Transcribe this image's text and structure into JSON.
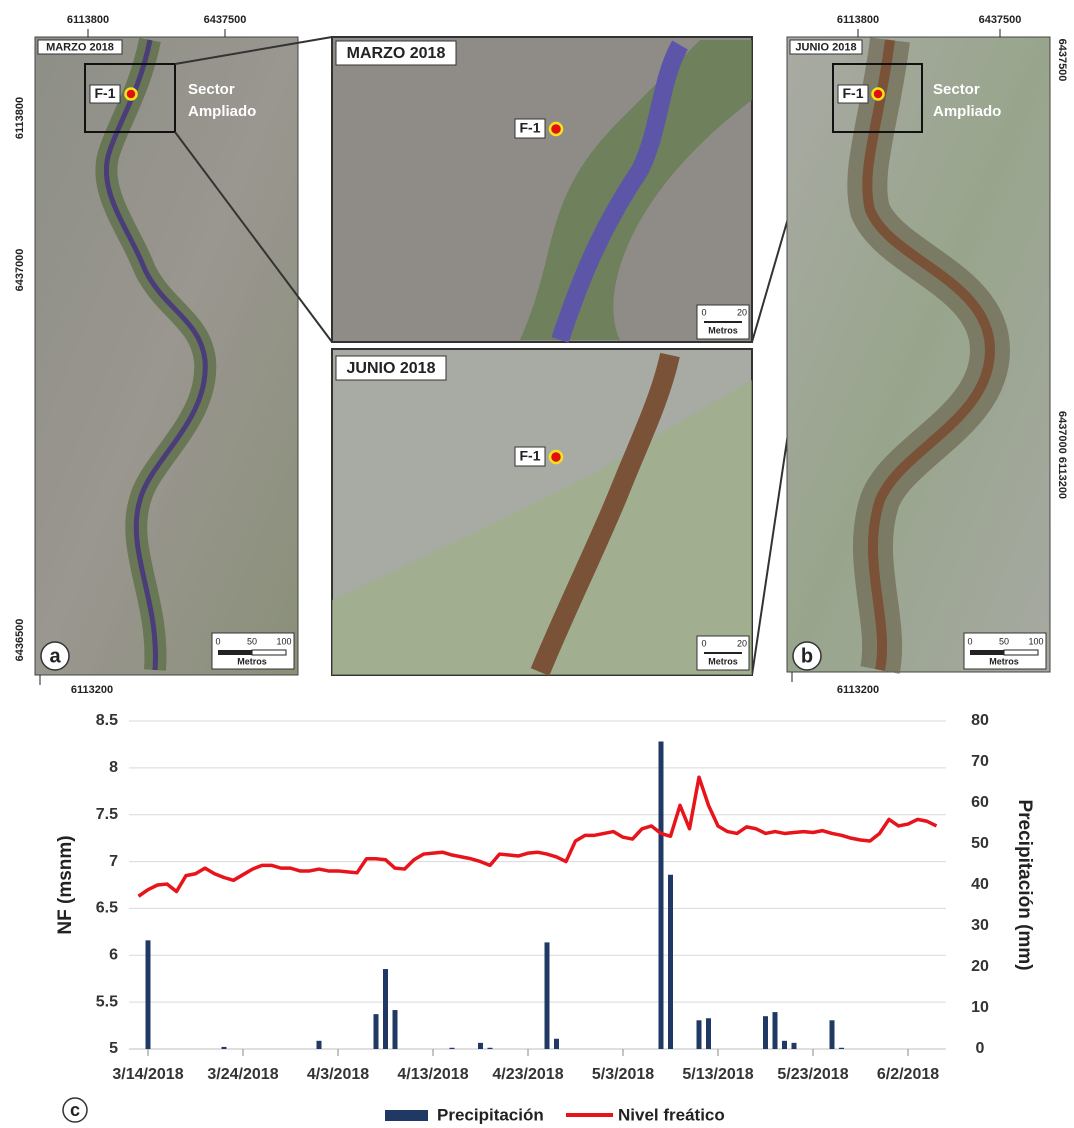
{
  "panel_a": {
    "label": "a",
    "date": "MARZO 2018",
    "top_coords": [
      "6113800",
      "6437500"
    ],
    "left_coords": [
      "6113800",
      "6437000",
      "6436500"
    ],
    "bottom_coord": "6113200",
    "point": "F-1",
    "sector": [
      "Sector",
      "Ampliado"
    ],
    "scale": [
      "0",
      "50",
      "100"
    ],
    "scale_unit": "Metros"
  },
  "panel_b": {
    "label": "b",
    "date": "JUNIO 2018",
    "top_coords": [
      "6113800",
      "6437500"
    ],
    "right_coords": [
      "6437500",
      "6437000 6113200"
    ],
    "bottom_coord": "6113200",
    "point": "F-1",
    "sector": [
      "Sector",
      "Ampliado"
    ],
    "scale": [
      "0",
      "50",
      "100"
    ],
    "scale_unit": "Metros"
  },
  "inset_march": {
    "date": "MARZO 2018",
    "point": "F-1",
    "scale": [
      "0",
      "20"
    ],
    "scale_unit": "Metros"
  },
  "inset_june": {
    "date": "JUNIO 2018",
    "point": "F-1",
    "scale": [
      "0",
      "20"
    ],
    "scale_unit": "Metros"
  },
  "chart_data": {
    "type": "combo",
    "panel_label": "c",
    "y_label": "NF (msnm)",
    "y2_label": "Precipitación (mm)",
    "xlim": [
      "3/12/2018",
      "6/6/2018"
    ],
    "xticks": [
      "3/14/2018",
      "3/24/2018",
      "4/3/2018",
      "4/13/2018",
      "4/23/2018",
      "5/3/2018",
      "5/13/2018",
      "5/23/2018",
      "6/2/2018"
    ],
    "ylim": [
      5,
      8.5
    ],
    "yticks": [
      5,
      5.5,
      6,
      6.5,
      7,
      7.5,
      8,
      8.5
    ],
    "y2lim": [
      0,
      80
    ],
    "y2ticks": [
      0,
      10,
      20,
      30,
      40,
      50,
      60,
      70,
      80
    ],
    "grid": true,
    "legend": "bottom",
    "series": [
      {
        "name": "Precipitación",
        "type": "bar",
        "axis": "y2",
        "color": "#1f3864",
        "x": [
          "3/14/2018",
          "3/22/2018",
          "4/1/2018",
          "4/7/2018",
          "4/8/2018",
          "4/9/2018",
          "4/15/2018",
          "4/18/2018",
          "4/19/2018",
          "4/25/2018",
          "4/26/2018",
          "5/7/2018",
          "5/8/2018",
          "5/11/2018",
          "5/12/2018",
          "5/18/2018",
          "5/19/2018",
          "5/20/2018",
          "5/21/2018",
          "5/25/2018",
          "5/26/2018"
        ],
        "values": [
          26.5,
          0.5,
          2,
          8.5,
          19.5,
          9.5,
          0.3,
          1.5,
          0.3,
          26,
          2.5,
          75,
          42.5,
          7,
          7.5,
          8,
          9,
          2,
          1.5,
          7,
          0.3
        ]
      },
      {
        "name": "Nivel freático",
        "type": "line",
        "axis": "y",
        "color": "#e8141b",
        "x": [
          "3/13/2018",
          "3/14/2018",
          "3/15/2018",
          "3/16/2018",
          "3/17/2018",
          "3/18/2018",
          "3/19/2018",
          "3/20/2018",
          "3/21/2018",
          "3/22/2018",
          "3/23/2018",
          "3/24/2018",
          "3/25/2018",
          "3/26/2018",
          "3/27/2018",
          "3/28/2018",
          "3/29/2018",
          "3/30/2018",
          "3/31/2018",
          "4/1/2018",
          "4/2/2018",
          "4/3/2018",
          "4/4/2018",
          "4/5/2018",
          "4/6/2018",
          "4/7/2018",
          "4/8/2018",
          "4/9/2018",
          "4/10/2018",
          "4/11/2018",
          "4/12/2018",
          "4/13/2018",
          "4/14/2018",
          "4/15/2018",
          "4/16/2018",
          "4/17/2018",
          "4/18/2018",
          "4/19/2018",
          "4/20/2018",
          "4/21/2018",
          "4/22/2018",
          "4/23/2018",
          "4/24/2018",
          "4/25/2018",
          "4/26/2018",
          "4/27/2018",
          "4/28/2018",
          "4/29/2018",
          "4/30/2018",
          "5/1/2018",
          "5/2/2018",
          "5/3/2018",
          "5/4/2018",
          "5/5/2018",
          "5/6/2018",
          "5/7/2018",
          "5/8/2018",
          "5/9/2018",
          "5/10/2018",
          "5/11/2018",
          "5/12/2018",
          "5/13/2018",
          "5/14/2018",
          "5/15/2018",
          "5/16/2018",
          "5/17/2018",
          "5/18/2018",
          "5/19/2018",
          "5/20/2018",
          "5/21/2018",
          "5/22/2018",
          "5/23/2018",
          "5/24/2018",
          "5/25/2018",
          "5/26/2018",
          "5/27/2018",
          "5/28/2018",
          "5/29/2018",
          "5/30/2018",
          "5/31/2018",
          "6/1/2018",
          "6/2/2018",
          "6/3/2018",
          "6/4/2018",
          "6/5/2018"
        ],
        "values": [
          6.63,
          6.7,
          6.75,
          6.76,
          6.68,
          6.85,
          6.87,
          6.93,
          6.87,
          6.83,
          6.8,
          6.86,
          6.92,
          6.96,
          6.96,
          6.93,
          6.93,
          6.9,
          6.9,
          6.92,
          6.9,
          6.9,
          6.89,
          6.88,
          7.03,
          7.03,
          7.02,
          6.93,
          6.92,
          7.02,
          7.08,
          7.09,
          7.1,
          7.07,
          7.05,
          7.03,
          7.0,
          6.96,
          7.08,
          7.07,
          7.06,
          7.09,
          7.1,
          7.08,
          7.05,
          7.0,
          7.22,
          7.28,
          7.28,
          7.3,
          7.32,
          7.26,
          7.24,
          7.35,
          7.38,
          7.3,
          7.27,
          7.6,
          7.35,
          7.9,
          7.6,
          7.38,
          7.32,
          7.3,
          7.37,
          7.35,
          7.3,
          7.32,
          7.3,
          7.31,
          7.32,
          7.31,
          7.33,
          7.3,
          7.28,
          7.25,
          7.23,
          7.22,
          7.3,
          7.45,
          7.38,
          7.4,
          7.45,
          7.43,
          7.38
        ]
      }
    ]
  }
}
